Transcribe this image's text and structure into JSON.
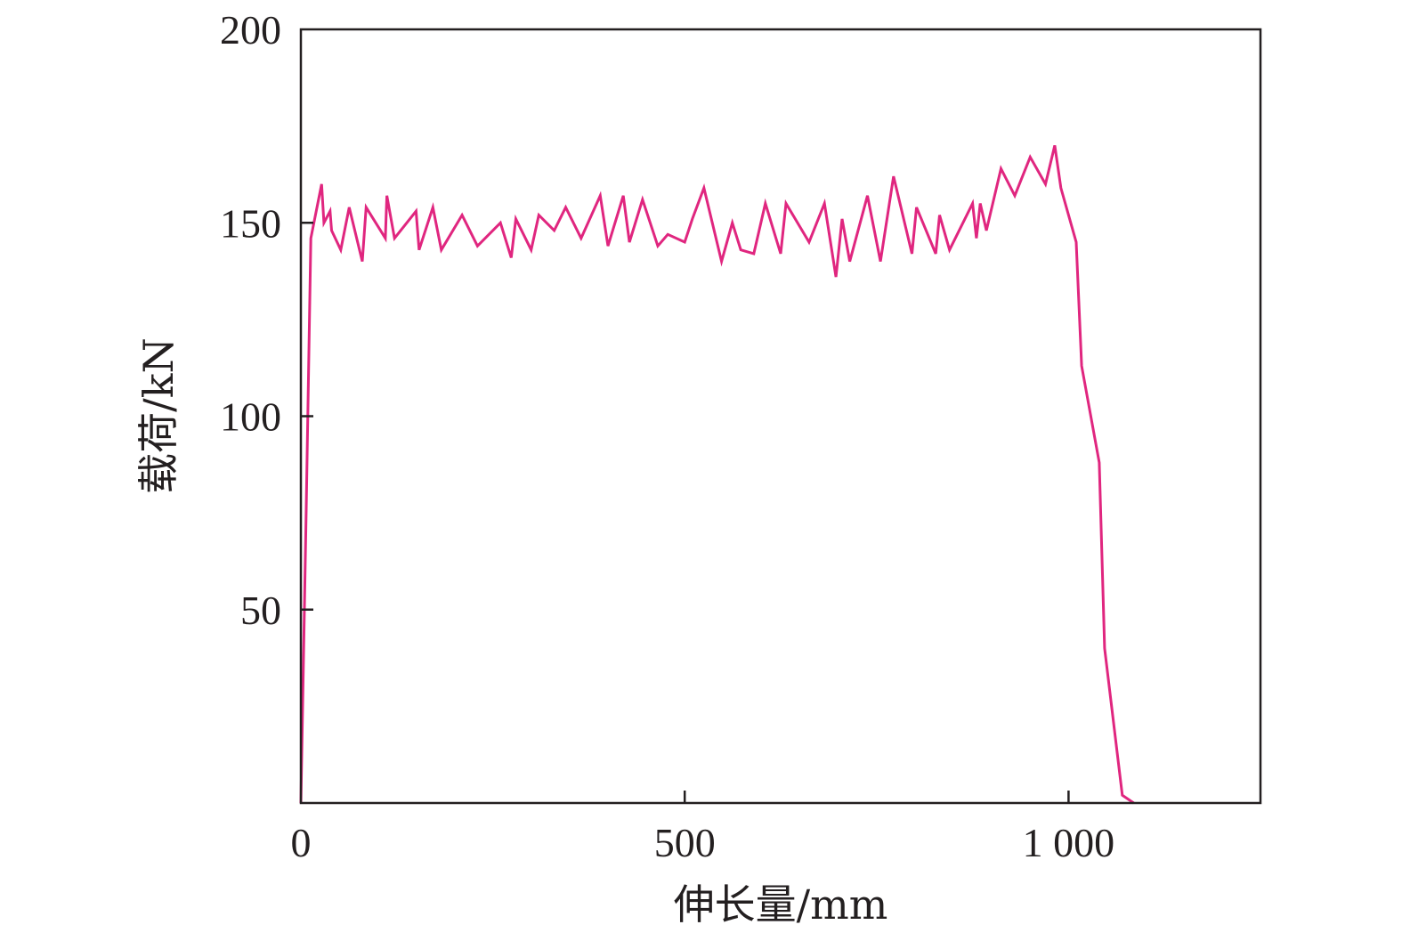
{
  "chart_data": {
    "type": "line",
    "xlabel": "伸长量/mm",
    "ylabel": "载荷/kN",
    "xlim": [
      0,
      1250
    ],
    "ylim": [
      0,
      200
    ],
    "xticks": [
      0,
      500,
      1000
    ],
    "xtick_labels": [
      "0",
      "500",
      "1 000"
    ],
    "yticks": [
      50,
      100,
      150,
      200
    ],
    "ytick_labels": [
      "50",
      "100",
      "150",
      "200"
    ],
    "grid": false,
    "legend": "none",
    "series": [
      {
        "color": "#e0267f",
        "points": [
          [
            0,
            0
          ],
          [
            7,
            76
          ],
          [
            13,
            146
          ],
          [
            27,
            160
          ],
          [
            30,
            150
          ],
          [
            38,
            153
          ],
          [
            40,
            148
          ],
          [
            52,
            143
          ],
          [
            63,
            154
          ],
          [
            80,
            140
          ],
          [
            85,
            154
          ],
          [
            110,
            146
          ],
          [
            112,
            157
          ],
          [
            122,
            146
          ],
          [
            150,
            153
          ],
          [
            154,
            143
          ],
          [
            172,
            154
          ],
          [
            183,
            143
          ],
          [
            210,
            152
          ],
          [
            230,
            144
          ],
          [
            260,
            150
          ],
          [
            274,
            141
          ],
          [
            280,
            151
          ],
          [
            300,
            143
          ],
          [
            310,
            152
          ],
          [
            330,
            148
          ],
          [
            345,
            154
          ],
          [
            365,
            146
          ],
          [
            390,
            157
          ],
          [
            400,
            144
          ],
          [
            420,
            157
          ],
          [
            428,
            145
          ],
          [
            445,
            156
          ],
          [
            465,
            144
          ],
          [
            478,
            147
          ],
          [
            500,
            145
          ],
          [
            510,
            151
          ],
          [
            525,
            159
          ],
          [
            548,
            140
          ],
          [
            562,
            150
          ],
          [
            573,
            143
          ],
          [
            590,
            142
          ],
          [
            605,
            155
          ],
          [
            625,
            142
          ],
          [
            632,
            155
          ],
          [
            662,
            145
          ],
          [
            682,
            155
          ],
          [
            697,
            136
          ],
          [
            705,
            151
          ],
          [
            715,
            140
          ],
          [
            738,
            157
          ],
          [
            755,
            140
          ],
          [
            772,
            162
          ],
          [
            796,
            142
          ],
          [
            802,
            154
          ],
          [
            827,
            142
          ],
          [
            832,
            152
          ],
          [
            845,
            143
          ],
          [
            875,
            155
          ],
          [
            880,
            146
          ],
          [
            885,
            155
          ],
          [
            893,
            148
          ],
          [
            912,
            164
          ],
          [
            930,
            157
          ],
          [
            950,
            167
          ],
          [
            970,
            160
          ],
          [
            982,
            170
          ],
          [
            990,
            159
          ],
          [
            1010,
            145
          ],
          [
            1017,
            113
          ],
          [
            1040,
            88
          ],
          [
            1047,
            40
          ],
          [
            1070,
            2
          ],
          [
            1085,
            0
          ]
        ]
      }
    ]
  }
}
